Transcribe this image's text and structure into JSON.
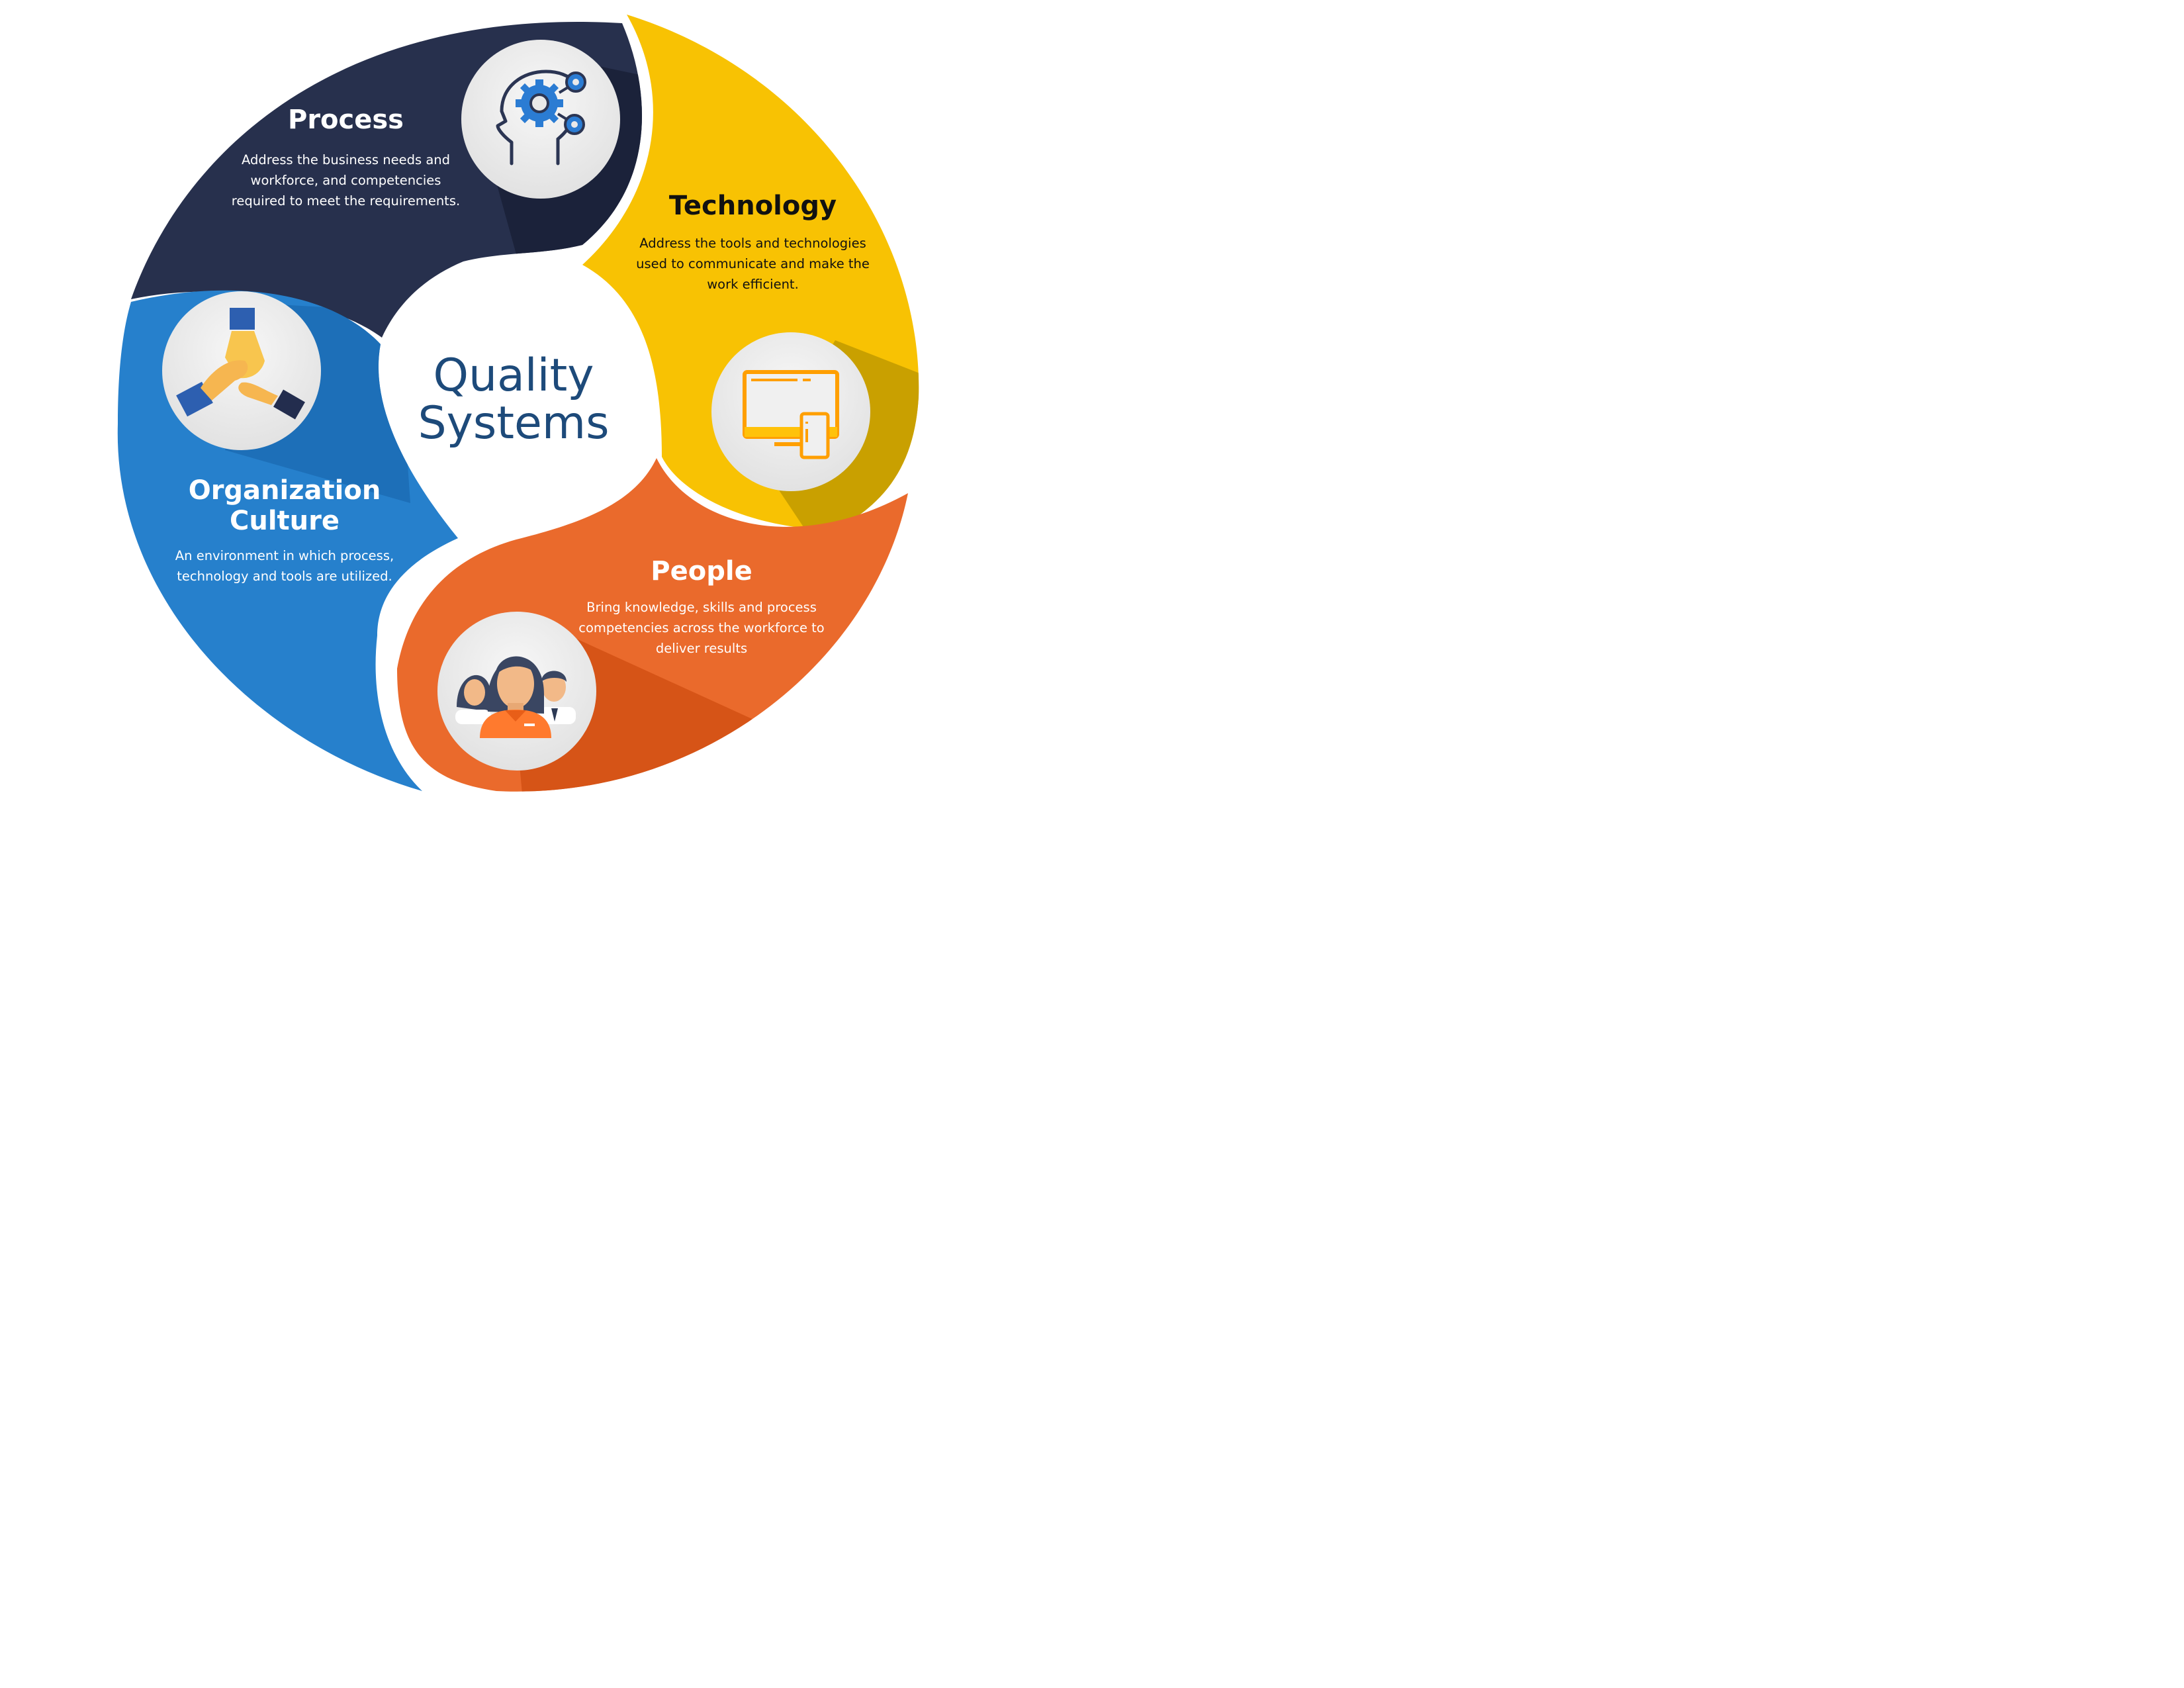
{
  "center": {
    "title_line1": "Quality",
    "title_line2": "Systems"
  },
  "segments": [
    {
      "id": "process",
      "title": "Process",
      "description": "Address the business needs and workforce, and competencies required to meet the requirements.",
      "icon": "head-gears-icon",
      "color": "#27304d"
    },
    {
      "id": "technology",
      "title": "Technology",
      "description": "Address the tools and technologies used to communicate and make the work efficient.",
      "icon": "monitor-phone-icon",
      "color": "#f8c203"
    },
    {
      "id": "people",
      "title": "People",
      "description": "Bring knowledge, skills and process competencies across the workforce to deliver results",
      "icon": "team-people-icon",
      "color": "#ea6a2c"
    },
    {
      "id": "culture",
      "title_line1": "Organization",
      "title_line2": "Culture",
      "description": "An environment in which process, technology and tools are utilized.",
      "icon": "joined-hands-icon",
      "color": "#2680cc"
    }
  ],
  "colors": {
    "center_text": "#1d4a7a",
    "icon_circle": "#ececec",
    "dark_text": "#111111",
    "light_text": "#ffffff"
  }
}
